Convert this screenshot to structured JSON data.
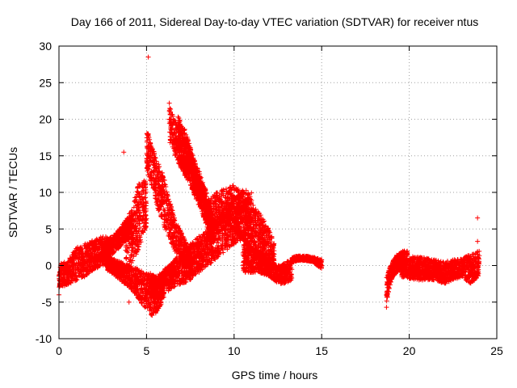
{
  "chart_data": {
    "type": "scatter",
    "title": "Day 166 of 2011, Sidereal Day-to-day VTEC variation (SDTVAR) for receiver ntus",
    "xlabel": "GPS time / hours",
    "ylabel": "SDTVAR / TECUs",
    "xlim": [
      0,
      25
    ],
    "ylim": [
      -10,
      30
    ],
    "x_ticks": [
      0,
      5,
      10,
      15,
      20,
      25
    ],
    "y_ticks": [
      -10,
      -5,
      0,
      5,
      10,
      15,
      20,
      25,
      30
    ],
    "x_tick_labels": [
      "0",
      "5",
      "10",
      "15",
      "20",
      "25"
    ],
    "y_tick_labels": [
      "-10",
      "-5",
      "0",
      "5",
      "10",
      "15",
      "20",
      "25",
      "30"
    ],
    "grid": true,
    "marker": "+",
    "series": [
      {
        "name": "ntus",
        "color": "#ff0000",
        "dense_tracks": [
          {
            "x": [
              0.0,
              0.3,
              0.6,
              1.0,
              1.5,
              2.0,
              2.5,
              3.0
            ],
            "low": [
              -3.0,
              -2.8,
              -2.5,
              -2.0,
              -1.5,
              -0.5,
              0.0,
              0.5
            ],
            "high": [
              0.2,
              0.5,
              1.0,
              2.5,
              3.0,
              3.5,
              4.0,
              3.8
            ]
          },
          {
            "x": [
              2.5,
              3.0,
              3.3,
              3.6,
              3.9,
              4.2
            ],
            "low": [
              1.0,
              1.5,
              2.0,
              3.0,
              3.5,
              3.5
            ],
            "high": [
              3.0,
              4.0,
              4.5,
              5.5,
              6.5,
              7.0
            ]
          },
          {
            "x": [
              3.8,
              4.2,
              4.5,
              4.8,
              5.0
            ],
            "low": [
              -1.0,
              0.0,
              2.0,
              4.0,
              5.5
            ],
            "high": [
              6.0,
              8.0,
              11.0,
              12.0,
              11.5
            ]
          },
          {
            "x": [
              2.7,
              3.0,
              3.5,
              4.0,
              4.5,
              5.0,
              5.3,
              5.6,
              6.0
            ],
            "low": [
              -0.5,
              -1.0,
              -2.0,
              -3.0,
              -4.5,
              -6.0,
              -7.0,
              -6.5,
              -4.5
            ],
            "high": [
              1.5,
              1.0,
              0.5,
              0.0,
              -0.5,
              -1.0,
              -1.5,
              -2.0,
              -0.5
            ]
          },
          {
            "x": [
              5.0,
              5.3,
              5.6,
              6.0,
              6.3,
              6.6,
              7.0,
              7.3,
              7.6
            ],
            "low": [
              13.0,
              11.0,
              8.0,
              5.5,
              3.5,
              2.0,
              1.0,
              0.0,
              -1.0
            ],
            "high": [
              18.5,
              16.5,
              14.5,
              12.0,
              9.0,
              6.5,
              4.5,
              3.0,
              1.5
            ]
          },
          {
            "x": [
              6.3,
              6.6,
              7.0,
              7.5,
              8.0,
              8.5,
              8.8
            ],
            "low": [
              17.0,
              15.0,
              13.0,
              11.0,
              8.0,
              5.0,
              3.0
            ],
            "high": [
              22.0,
              20.0,
              18.0,
              16.0,
              13.0,
              9.5,
              7.0
            ]
          },
          {
            "x": [
              6.8,
              7.2,
              7.6,
              8.0,
              8.5,
              8.9
            ],
            "low": [
              14.0,
              13.0,
              11.0,
              8.5,
              5.5,
              3.0
            ],
            "high": [
              20.5,
              18.5,
              15.5,
              12.5,
              9.0,
              6.0
            ]
          },
          {
            "x": [
              5.2,
              5.6,
              6.0,
              6.5,
              7.0,
              7.5,
              8.0,
              8.5,
              9.0,
              9.5,
              10.0,
              10.5,
              11.0
            ],
            "low": [
              -4.0,
              -5.0,
              -4.0,
              -3.0,
              -2.5,
              -2.0,
              -1.0,
              0.0,
              1.0,
              2.0,
              3.0,
              3.5,
              2.5
            ],
            "high": [
              -1.0,
              -1.5,
              -0.5,
              0.5,
              2.0,
              3.0,
              4.0,
              5.0,
              6.5,
              8.0,
              9.0,
              10.5,
              10.0
            ]
          },
          {
            "x": [
              8.5,
              9.0,
              9.5,
              10.0,
              10.5,
              11.0,
              11.5,
              12.0,
              12.3
            ],
            "low": [
              3.0,
              4.5,
              5.0,
              4.5,
              3.5,
              2.0,
              1.0,
              0.0,
              -0.5
            ],
            "high": [
              9.0,
              10.0,
              10.5,
              11.0,
              10.0,
              8.5,
              7.0,
              5.0,
              3.0
            ]
          },
          {
            "x": [
              10.5,
              11.0,
              11.5,
              12.0,
              12.5,
              13.0,
              13.3
            ],
            "low": [
              -1.0,
              -1.0,
              -1.0,
              -1.5,
              -2.5,
              -2.5,
              -2.0
            ],
            "high": [
              3.0,
              2.5,
              2.0,
              1.0,
              0.0,
              0.5,
              0.8
            ]
          },
          {
            "x": [
              13.3,
              13.7,
              14.0,
              14.5,
              15.0
            ],
            "low": [
              0.5,
              0.7,
              0.7,
              0.5,
              -0.5
            ],
            "high": [
              1.2,
              1.3,
              1.3,
              1.2,
              0.8
            ]
          },
          {
            "x": [
              18.7,
              19.0,
              19.3,
              19.6,
              19.9
            ],
            "low": [
              -5.0,
              -2.0,
              -1.0,
              0.0,
              0.5
            ],
            "high": [
              -1.5,
              0.5,
              1.5,
              2.0,
              2.0
            ]
          },
          {
            "x": [
              19.5,
              20.0,
              20.5,
              21.0,
              21.5,
              22.0,
              22.5,
              23.0,
              23.5,
              24.0
            ],
            "low": [
              -1.5,
              -1.8,
              -2.0,
              -2.0,
              -2.0,
              -2.5,
              -2.0,
              -1.5,
              -2.5,
              -1.5
            ],
            "high": [
              0.5,
              1.0,
              1.2,
              1.0,
              0.8,
              0.5,
              0.8,
              1.0,
              1.5,
              2.0
            ]
          }
        ],
        "outliers": [
          {
            "x": 5.1,
            "y": 28.5
          },
          {
            "x": 3.7,
            "y": 15.5
          },
          {
            "x": 4.0,
            "y": -5.0
          },
          {
            "x": 23.9,
            "y": 6.5
          },
          {
            "x": 23.9,
            "y": 3.3
          },
          {
            "x": 18.7,
            "y": -5.7
          },
          {
            "x": 20.2,
            "y": 1.2
          },
          {
            "x": 6.3,
            "y": 22.2
          },
          {
            "x": 5.1,
            "y": 18.0
          },
          {
            "x": 0.0,
            "y": -4.0
          }
        ]
      }
    ]
  }
}
